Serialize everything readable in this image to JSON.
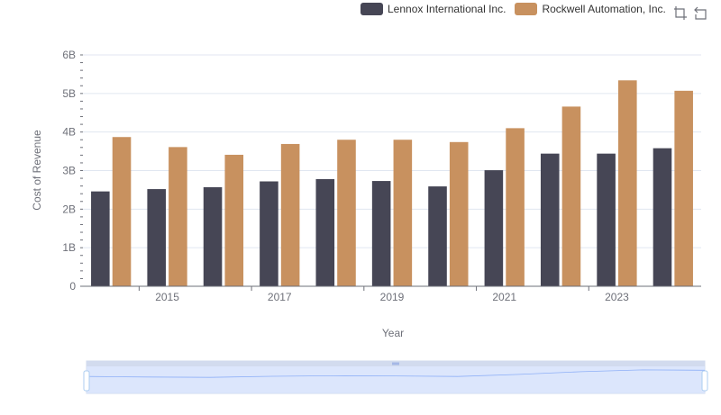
{
  "legend": {
    "items": [
      {
        "label": "Lennox International Inc.",
        "color": "#464655"
      },
      {
        "label": "Rockwell Automation, Inc.",
        "color": "#c8915f"
      }
    ]
  },
  "toolbox": {
    "icons": [
      "zoom-icon",
      "zoom-reset-icon"
    ]
  },
  "chart_data": {
    "type": "bar",
    "title": "",
    "xlabel": "Year",
    "ylabel": "Cost of Revenue",
    "x": [
      2014,
      2015,
      2016,
      2017,
      2018,
      2019,
      2020,
      2021,
      2022,
      2023,
      2024
    ],
    "x_tick_labels": [
      "2015",
      "2017",
      "2019",
      "2021",
      "2023"
    ],
    "y_tick_labels": [
      "0",
      "1B",
      "2B",
      "3B",
      "4B",
      "5B",
      "6B"
    ],
    "ylim": [
      0,
      6000000000
    ],
    "grid": true,
    "legend_position": "top-right",
    "series": [
      {
        "name": "Lennox International Inc.",
        "color": "#464655",
        "values": [
          2460000000,
          2520000000,
          2570000000,
          2720000000,
          2780000000,
          2730000000,
          2590000000,
          3010000000,
          3440000000,
          3440000000,
          3580000000
        ]
      },
      {
        "name": "Rockwell Automation, Inc.",
        "color": "#c8915f",
        "values": [
          3870000000,
          3610000000,
          3410000000,
          3690000000,
          3800000000,
          3800000000,
          3740000000,
          4100000000,
          4660000000,
          5340000000,
          5070000000
        ]
      }
    ],
    "data_zoom": {
      "start": 0,
      "end": 100
    }
  }
}
